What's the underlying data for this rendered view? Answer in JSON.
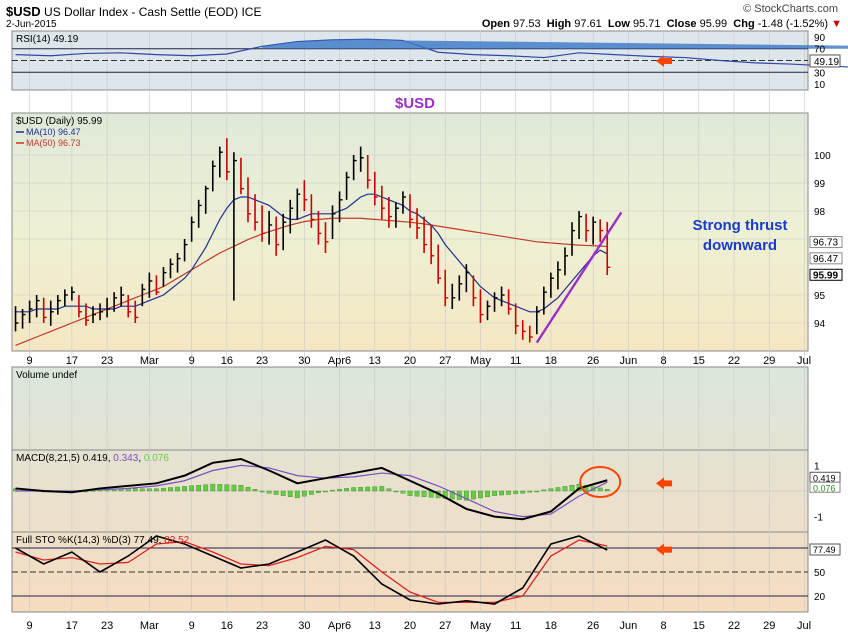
{
  "header": {
    "symbol": "$USD",
    "name": "US Dollar Index - Cash Settle (EOD)",
    "exchange": "ICE",
    "date": "2-Jun-2015",
    "brand": "© StockCharts.com",
    "open_label": "Open",
    "open": "97.53",
    "high_label": "High",
    "high": "97.61",
    "low_label": "Low",
    "low": "95.71",
    "close_label": "Close",
    "close": "95.99",
    "chg_label": "Chg",
    "chg": "-1.48 (-1.52%)",
    "chg_marker": "▼"
  },
  "annotations": {
    "center_title": "$USD",
    "thrust_line1": "Strong thrust",
    "thrust_line2": "downward"
  },
  "colors": {
    "price_bar_up": "#000000",
    "price_bar_down": "#cc0000",
    "ma10": "#1f2f8f",
    "ma50": "#c0392b",
    "trendline": "#9b30c8",
    "annotation_text": "#1a3ccc",
    "center_title": "#9b30c8",
    "arrow": "#ff4400",
    "rsi": "#3344aa",
    "macd_line": "#000000",
    "macd_signal": "#7a4fc0",
    "macd_hist": "#66cc44",
    "sto_k": "#000000",
    "sto_d": "#dd2222"
  },
  "chart_data": [
    {
      "type": "line",
      "panel": "RSI",
      "legend": "RSI(14) 49.19",
      "ylim": [
        0,
        100
      ],
      "ticks": [
        10,
        30,
        50,
        70,
        90
      ],
      "reference_lines": [
        30,
        70
      ],
      "current": 49.19,
      "current_label": "49.19",
      "x": [
        0,
        5,
        10,
        15,
        20,
        25,
        30,
        35,
        40,
        45,
        50,
        55,
        60,
        65,
        70,
        75,
        80,
        85,
        90,
        95,
        100,
        105,
        110,
        115,
        120,
        125,
        130,
        135,
        140,
        145,
        150,
        155,
        160,
        165,
        170
      ],
      "values": [
        60,
        58,
        62,
        63,
        60,
        58,
        61,
        74,
        82,
        85,
        86,
        84,
        64,
        60,
        58,
        55,
        63,
        60,
        57,
        55,
        50,
        46,
        44,
        41,
        38,
        34,
        30,
        34,
        42,
        55,
        60,
        70,
        66,
        62,
        49
      ]
    },
    {
      "type": "bar",
      "panel": "Price",
      "legend": [
        "$USD (Daily) 95.99",
        "MA(10) 96.47",
        "MA(50) 96.73"
      ],
      "ylim": [
        93.0,
        101.5
      ],
      "ticks": [
        94,
        95,
        97,
        98,
        99,
        100
      ],
      "price_labels": [
        "96.73",
        "96.47",
        "95.99"
      ],
      "x_tick_labels": [
        "9",
        "17",
        "23",
        "Mar",
        "9",
        "16",
        "23",
        "30",
        "Apr6",
        "13",
        "20",
        "27",
        "May",
        "11",
        "18",
        "26",
        "Jun",
        "8",
        "15",
        "22",
        "29",
        "Jul"
      ],
      "x_tick_index": [
        2,
        8,
        13,
        19,
        25,
        30,
        35,
        41,
        46,
        51,
        56,
        61,
        66,
        71,
        76,
        82,
        87,
        92,
        97,
        102,
        107,
        112
      ],
      "bars": [
        [
          94.6,
          93.7,
          94.0
        ],
        [
          94.5,
          93.8,
          94.3
        ],
        [
          94.8,
          94.0,
          94.5
        ],
        [
          95.0,
          94.2,
          94.8
        ],
        [
          94.9,
          94.0,
          94.2
        ],
        [
          94.8,
          93.9,
          94.4
        ],
        [
          95.0,
          94.3,
          94.8
        ],
        [
          95.2,
          94.6,
          95.0
        ],
        [
          95.3,
          94.8,
          95.1
        ],
        [
          95.0,
          94.2,
          94.4
        ],
        [
          94.7,
          93.9,
          94.1
        ],
        [
          94.6,
          94.0,
          94.3
        ],
        [
          94.7,
          94.1,
          94.4
        ],
        [
          94.9,
          94.2,
          94.5
        ],
        [
          95.1,
          94.4,
          94.9
        ],
        [
          95.3,
          94.6,
          95.0
        ],
        [
          95.0,
          94.2,
          94.4
        ],
        [
          94.8,
          94.0,
          94.2
        ],
        [
          95.4,
          94.6,
          95.2
        ],
        [
          95.8,
          94.9,
          95.5
        ],
        [
          95.7,
          95.0,
          95.1
        ],
        [
          96.0,
          95.3,
          95.8
        ],
        [
          96.3,
          95.6,
          96.1
        ],
        [
          96.5,
          95.8,
          96.3
        ],
        [
          97.0,
          96.2,
          96.8
        ],
        [
          97.8,
          96.9,
          97.6
        ],
        [
          98.4,
          97.4,
          98.2
        ],
        [
          98.9,
          97.9,
          98.8
        ],
        [
          99.8,
          98.7,
          99.6
        ],
        [
          100.3,
          99.2,
          100.1
        ],
        [
          100.6,
          99.1,
          99.4
        ],
        [
          100.1,
          94.8,
          99.8
        ],
        [
          99.9,
          98.6,
          98.8
        ],
        [
          99.2,
          97.6,
          97.9
        ],
        [
          98.6,
          97.3,
          97.6
        ],
        [
          98.2,
          96.9,
          97.2
        ],
        [
          98.0,
          96.8,
          97.5
        ],
        [
          97.8,
          96.4,
          96.8
        ],
        [
          97.9,
          96.6,
          97.6
        ],
        [
          98.4,
          97.2,
          98.1
        ],
        [
          98.8,
          97.7,
          98.6
        ],
        [
          99.1,
          98.0,
          98.4
        ],
        [
          98.6,
          97.4,
          97.7
        ],
        [
          98.0,
          96.8,
          97.2
        ],
        [
          97.6,
          96.5,
          96.9
        ],
        [
          98.2,
          97.0,
          97.9
        ],
        [
          98.7,
          97.6,
          98.4
        ],
        [
          99.4,
          98.4,
          99.2
        ],
        [
          100.0,
          99.1,
          99.8
        ],
        [
          100.3,
          99.4,
          99.9
        ],
        [
          100.0,
          98.8,
          99.1
        ],
        [
          99.4,
          98.2,
          98.5
        ],
        [
          98.9,
          97.7,
          98.1
        ],
        [
          98.5,
          97.4,
          97.8
        ],
        [
          98.3,
          97.4,
          98.1
        ],
        [
          98.7,
          97.9,
          98.5
        ],
        [
          98.6,
          97.4,
          97.7
        ],
        [
          98.1,
          97.0,
          97.4
        ],
        [
          97.8,
          96.5,
          96.8
        ],
        [
          97.5,
          96.1,
          96.4
        ],
        [
          96.8,
          95.4,
          95.6
        ],
        [
          95.9,
          94.6,
          94.9
        ],
        [
          95.4,
          94.5,
          94.9
        ],
        [
          95.7,
          94.8,
          95.4
        ],
        [
          96.1,
          95.1,
          95.8
        ],
        [
          95.7,
          94.6,
          94.9
        ],
        [
          95.2,
          94.0,
          94.3
        ],
        [
          94.8,
          94.1,
          94.6
        ],
        [
          95.1,
          94.4,
          94.9
        ],
        [
          95.3,
          94.6,
          95.0
        ],
        [
          95.2,
          94.3,
          94.5
        ],
        [
          94.7,
          93.6,
          93.9
        ],
        [
          94.1,
          93.4,
          93.7
        ],
        [
          93.9,
          93.3,
          93.5
        ],
        [
          94.6,
          93.6,
          94.4
        ],
        [
          95.3,
          94.3,
          95.1
        ],
        [
          95.8,
          94.9,
          95.6
        ],
        [
          96.2,
          95.2,
          95.9
        ],
        [
          96.7,
          95.7,
          96.4
        ],
        [
          97.6,
          96.4,
          97.3
        ],
        [
          98.0,
          97.0,
          97.8
        ],
        [
          97.9,
          96.9,
          97.3
        ],
        [
          97.8,
          96.8,
          97.6
        ],
        [
          97.7,
          96.9,
          97.3
        ],
        [
          97.61,
          95.71,
          95.99
        ]
      ],
      "ma10": [
        94.4,
        94.4,
        94.4,
        94.5,
        94.5,
        94.5,
        94.5,
        94.6,
        94.6,
        94.6,
        94.6,
        94.5,
        94.5,
        94.5,
        94.5,
        94.6,
        94.6,
        94.6,
        94.7,
        94.8,
        94.9,
        95.0,
        95.2,
        95.4,
        95.6,
        95.9,
        96.3,
        96.7,
        97.2,
        97.7,
        98.1,
        98.4,
        98.5,
        98.5,
        98.4,
        98.3,
        98.2,
        98.0,
        97.8,
        97.7,
        97.7,
        97.8,
        97.9,
        97.9,
        97.9,
        97.9,
        98.0,
        98.1,
        98.3,
        98.5,
        98.6,
        98.6,
        98.5,
        98.4,
        98.3,
        98.2,
        98.0,
        97.9,
        97.7,
        97.5,
        97.2,
        96.8,
        96.5,
        96.2,
        95.9,
        95.6,
        95.3,
        95.1,
        94.9,
        94.8,
        94.7,
        94.6,
        94.5,
        94.4,
        94.4,
        94.5,
        94.7,
        94.9,
        95.2,
        95.5,
        95.8,
        96.1,
        96.4,
        96.6,
        96.47
      ],
      "ma50": [
        93.2,
        93.3,
        93.4,
        93.5,
        93.6,
        93.7,
        93.8,
        93.9,
        94.0,
        94.1,
        94.2,
        94.3,
        94.4,
        94.5,
        94.6,
        94.7,
        94.8,
        94.9,
        95.0,
        95.1,
        95.2,
        95.3,
        95.45,
        95.6,
        95.75,
        95.9,
        96.05,
        96.2,
        96.35,
        96.5,
        96.62,
        96.74,
        96.86,
        96.98,
        97.08,
        97.18,
        97.26,
        97.34,
        97.42,
        97.5,
        97.56,
        97.62,
        97.66,
        97.7,
        97.72,
        97.74,
        97.74,
        97.74,
        97.74,
        97.74,
        97.72,
        97.7,
        97.68,
        97.66,
        97.64,
        97.62,
        97.6,
        97.57,
        97.54,
        97.5,
        97.46,
        97.42,
        97.38,
        97.34,
        97.3,
        97.26,
        97.22,
        97.18,
        97.14,
        97.1,
        97.06,
        97.02,
        96.98,
        96.94,
        96.9,
        96.88,
        96.86,
        96.84,
        96.82,
        96.8,
        96.78,
        96.77,
        96.76,
        96.75,
        96.73
      ]
    },
    {
      "type": "bar",
      "panel": "Volume",
      "legend": "Volume undef"
    },
    {
      "type": "line",
      "panel": "MACD",
      "legend": "MACD(8,21,5) 0.419, 0.343, 0.076",
      "legend_parts": {
        "label": "MACD(8,21,5)",
        "macd": "0.419",
        "signal": "0.343",
        "hist": "0.076"
      },
      "ylim": [
        -1.6,
        1.6
      ],
      "ticks": [
        1,
        -1
      ],
      "tick_labels": [
        "1",
        "-1"
      ],
      "price_labels": [
        "0.419",
        "0.076"
      ],
      "x": [
        0,
        4,
        8,
        12,
        16,
        20,
        24,
        28,
        32,
        36,
        40,
        44,
        48,
        52,
        56,
        60,
        64,
        68,
        72,
        76,
        80,
        84
      ],
      "macd": [
        0.1,
        0.0,
        -0.05,
        0.1,
        0.2,
        0.3,
        0.6,
        1.1,
        1.25,
        0.8,
        0.3,
        0.5,
        0.7,
        0.9,
        0.4,
        -0.1,
        -0.7,
        -1.0,
        -1.1,
        -0.8,
        0.1,
        0.419
      ],
      "signal": [
        0.0,
        0.0,
        0.0,
        0.05,
        0.1,
        0.2,
        0.4,
        0.8,
        1.0,
        0.9,
        0.6,
        0.5,
        0.55,
        0.7,
        0.6,
        0.2,
        -0.3,
        -0.8,
        -1.0,
        -0.9,
        -0.2,
        0.343
      ]
    },
    {
      "type": "line",
      "panel": "Full STO",
      "legend": "Full STO %K(14,3) %D(3) 77.49, 82.52",
      "legend_parts": {
        "label": "Full STO %K(14,3) %D(3)",
        "k": "77.49",
        "d": "82.52"
      },
      "ylim": [
        0,
        100
      ],
      "ticks": [
        20,
        50,
        80
      ],
      "reference_lines": [
        20,
        80
      ],
      "price_labels": [
        "77.49"
      ],
      "x": [
        0,
        4,
        8,
        12,
        16,
        20,
        24,
        28,
        32,
        36,
        40,
        44,
        48,
        52,
        56,
        60,
        64,
        68,
        72,
        76,
        80,
        84
      ],
      "k": [
        80,
        60,
        75,
        50,
        70,
        95,
        85,
        70,
        55,
        60,
        75,
        90,
        70,
        35,
        15,
        10,
        14,
        10,
        30,
        85,
        95,
        77.49
      ],
      "d": [
        75,
        65,
        68,
        60,
        62,
        85,
        88,
        75,
        60,
        58,
        68,
        82,
        78,
        50,
        25,
        12,
        12,
        12,
        20,
        70,
        90,
        82.52
      ]
    }
  ]
}
